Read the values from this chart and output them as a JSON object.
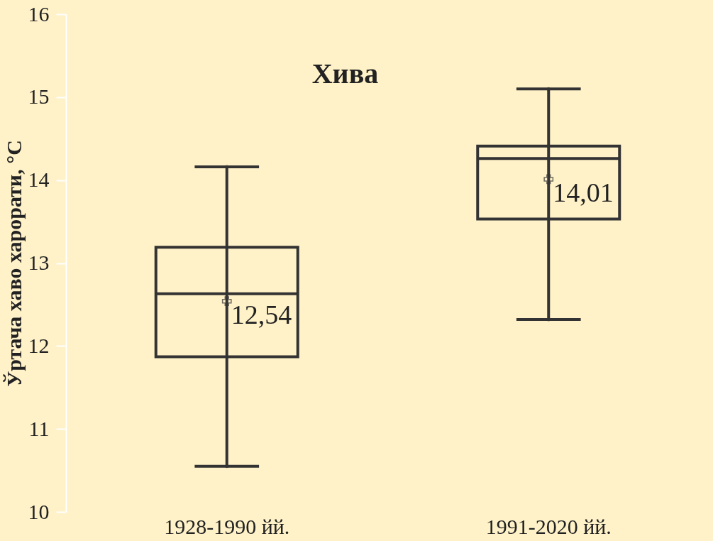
{
  "chart_data": {
    "type": "box",
    "title": "Хива",
    "ylabel": "Ўртача хаво харорати, °С",
    "categories": [
      "1928-1990 йй.",
      "1991-2020 йй."
    ],
    "boxes": [
      {
        "low": 10.55,
        "q1": 11.87,
        "median": 12.63,
        "q3": 13.19,
        "high": 14.16,
        "mean": 12.54
      },
      {
        "low": 12.32,
        "q1": 13.53,
        "median": 14.26,
        "q3": 14.41,
        "high": 15.1,
        "mean": 14.01
      }
    ],
    "color": "#333333",
    "ylim": [
      10,
      16
    ],
    "yticks": [
      10,
      11,
      12,
      13,
      14,
      15,
      16
    ],
    "annotations": [
      {
        "text": "12,54",
        "x": "1928-1990 йй.",
        "y": 12.54
      },
      {
        "text": "14,01",
        "x": "1991-2020 йй.",
        "y": 14.01
      }
    ],
    "grid": false,
    "marker": "cross"
  }
}
